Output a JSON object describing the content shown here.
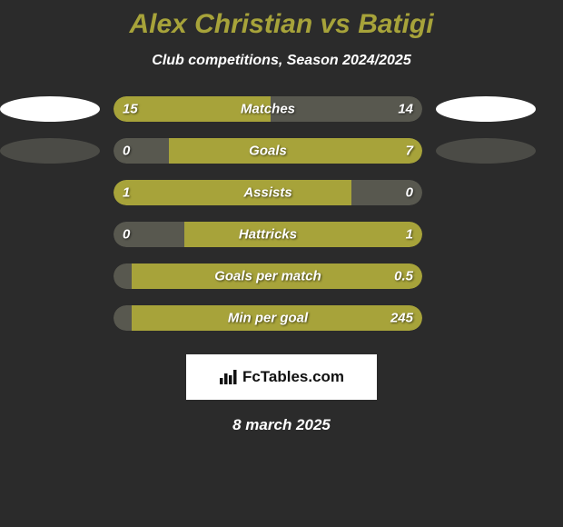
{
  "title": "Alex Christian vs Batigi",
  "subtitle": "Club competitions, Season 2024/2025",
  "date": "8 march 2025",
  "badge_text": "FcTables.com",
  "colors": {
    "background": "#2b2b2b",
    "accent": "#a7a33a",
    "muted": "#58584f",
    "ellipse_light": "#ffffff",
    "ellipse_dark": "#4b4b46",
    "text": "#ffffff"
  },
  "rows": [
    {
      "label": "Matches",
      "left_value": "15",
      "right_value": "14",
      "left_fill_pct": 51,
      "right_fill_pct": 49,
      "left_color": "#a7a33a",
      "right_color": "#58584f",
      "show_ellipses": true,
      "left_ellipse": "light",
      "right_ellipse": "light"
    },
    {
      "label": "Goals",
      "left_value": "0",
      "right_value": "7",
      "left_fill_pct": 18,
      "right_fill_pct": 82,
      "left_color": "#58584f",
      "right_color": "#a7a33a",
      "show_ellipses": true,
      "left_ellipse": "dark",
      "right_ellipse": "dark"
    },
    {
      "label": "Assists",
      "left_value": "1",
      "right_value": "0",
      "left_fill_pct": 77,
      "right_fill_pct": 23,
      "left_color": "#a7a33a",
      "right_color": "#58584f",
      "show_ellipses": false
    },
    {
      "label": "Hattricks",
      "left_value": "0",
      "right_value": "1",
      "left_fill_pct": 23,
      "right_fill_pct": 77,
      "left_color": "#58584f",
      "right_color": "#a7a33a",
      "show_ellipses": false
    },
    {
      "label": "Goals per match",
      "left_value": "",
      "right_value": "0.5",
      "left_fill_pct": 6,
      "right_fill_pct": 94,
      "left_color": "#58584f",
      "right_color": "#a7a33a",
      "show_ellipses": false
    },
    {
      "label": "Min per goal",
      "left_value": "",
      "right_value": "245",
      "left_fill_pct": 6,
      "right_fill_pct": 94,
      "left_color": "#58584f",
      "right_color": "#a7a33a",
      "show_ellipses": false
    }
  ]
}
